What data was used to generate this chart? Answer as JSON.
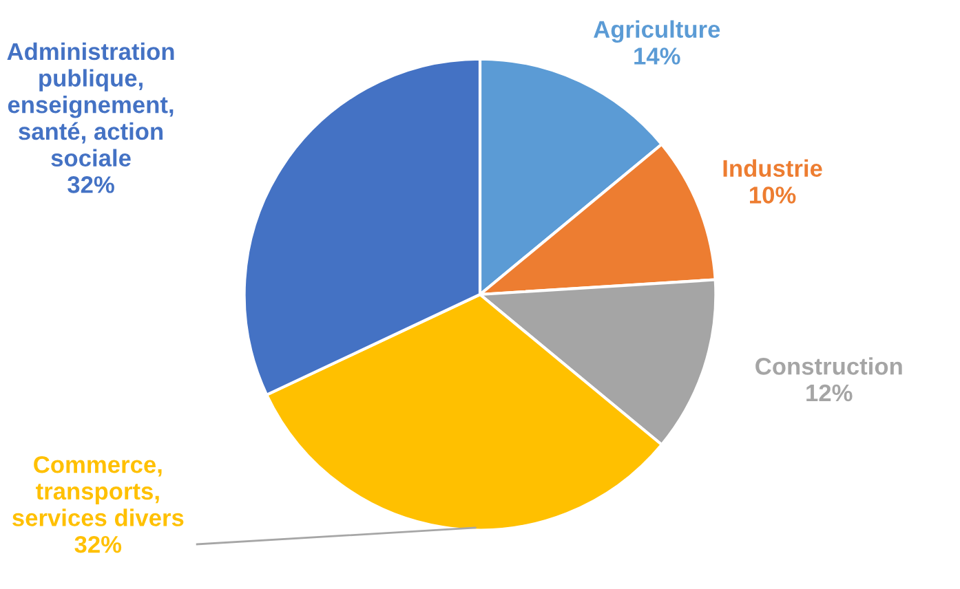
{
  "chart_data": {
    "type": "pie",
    "categories": [
      "Agriculture",
      "Industrie",
      "Construction",
      "Commerce,\ntransports,\nservices divers",
      "Administration\npublique,\nenseignement,\nsanté, action\nsociale"
    ],
    "values": [
      14,
      10,
      12,
      32,
      32
    ],
    "colors": [
      "#5b9bd5",
      "#ed7d31",
      "#a5a5a5",
      "#ffc000",
      "#4472c4"
    ],
    "value_labels": [
      "14%",
      "10%",
      "12%",
      "32%",
      "32%"
    ],
    "legend": false
  }
}
